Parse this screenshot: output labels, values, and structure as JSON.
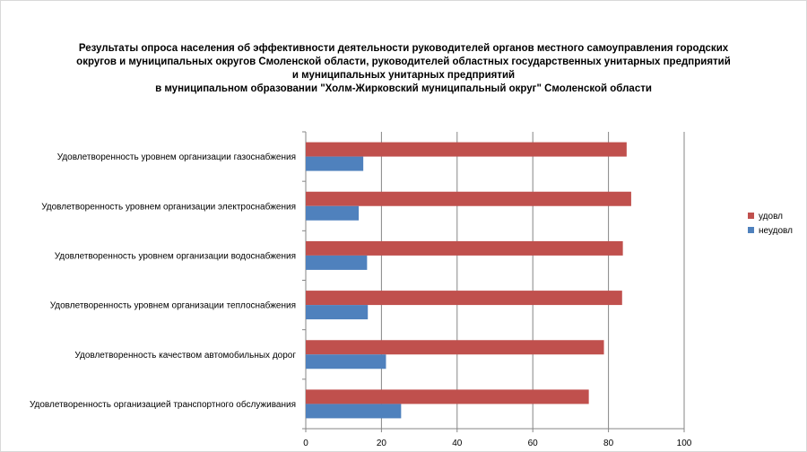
{
  "chart_data": {
    "type": "bar",
    "orientation": "horizontal",
    "title_lines": [
      "Результаты опроса населения об эффективности деятельности руководителей органов местного самоуправления городских",
      "округов и муниципальных округов Смоленской области, руководителей областных государственных унитарных предприятий",
      "и муниципальных унитарных предприятий",
      "в муниципальном образовании \"Холм-Жирковский муниципальный округ\" Смоленской области"
    ],
    "categories": [
      "Удовлетворенность уровнем организации газоснабжения",
      "Удовлетворенность уровнем организации электроснабжения",
      "Удовлетворенность уровнем организации водоснабжения",
      "Удовлетворенность уровнем организации теплоснабжения",
      "Удовлетворенность качеством автомобильных дорог",
      "Удовлетворенность организацией транспортного обслуживания"
    ],
    "series": [
      {
        "name": "удовл",
        "color": "#c0504d",
        "values": [
          84.8,
          86.0,
          83.8,
          83.6,
          78.8,
          74.8
        ]
      },
      {
        "name": "неудовл",
        "color": "#4f81bd",
        "values": [
          15.2,
          14.0,
          16.2,
          16.4,
          21.2,
          25.2
        ]
      }
    ],
    "xlim": [
      0,
      100
    ],
    "xticks": [
      0,
      20,
      40,
      60,
      80,
      100
    ],
    "grid": true,
    "legend": "right"
  }
}
